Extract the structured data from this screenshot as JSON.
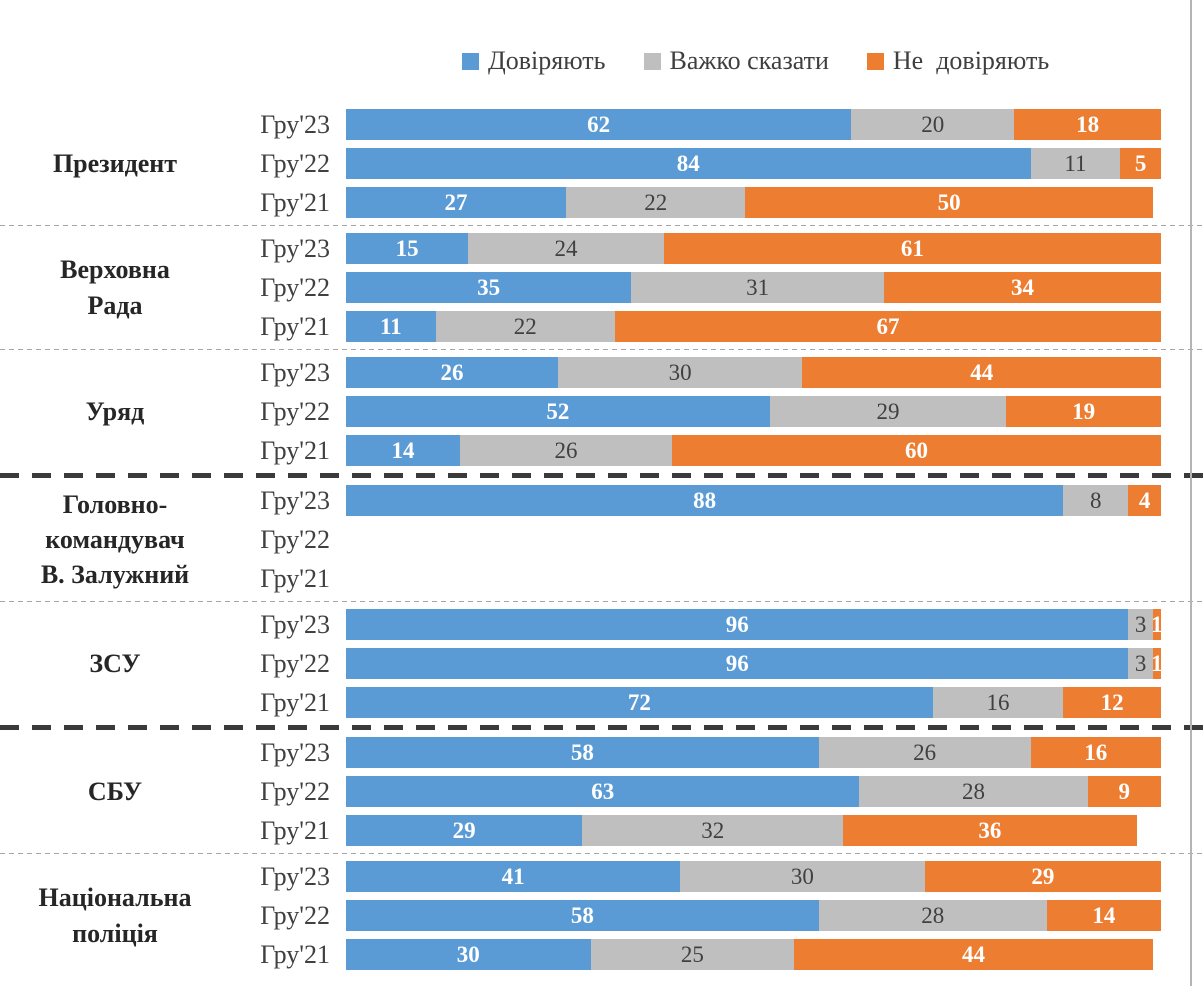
{
  "legend": {
    "items": [
      {
        "label": "Довіряють",
        "color": "#5B9BD5"
      },
      {
        "label": "Важко сказати",
        "color": "#BFBFBF"
      },
      {
        "label": "Не  довіряють",
        "color": "#ED7D31"
      }
    ]
  },
  "chart_data": {
    "type": "bar",
    "orientation": "horizontal",
    "stacked": true,
    "unit": "percent",
    "xlim": [
      0,
      100
    ],
    "series_names": [
      "Довіряють",
      "Важко сказати",
      "Не довіряють"
    ],
    "colors": [
      "#5B9BD5",
      "#BFBFBF",
      "#ED7D31"
    ],
    "value_label_colors": {
      "on_trust": "#FFFFFF",
      "on_hard_to_say": "#404040",
      "on_distrust": "#FFFFFF"
    },
    "groups": [
      {
        "label_lines": [
          "Президент"
        ],
        "separator_after": "thin",
        "rows": [
          {
            "year": "Гру'23",
            "values": [
              62,
              20,
              18
            ]
          },
          {
            "year": "Гру'22",
            "values": [
              84,
              11,
              5
            ]
          },
          {
            "year": "Гру'21",
            "values": [
              27,
              22,
              50
            ]
          }
        ]
      },
      {
        "label_lines": [
          "Верховна",
          "Рада"
        ],
        "separator_after": "thin",
        "rows": [
          {
            "year": "Гру'23",
            "values": [
              15,
              24,
              61
            ]
          },
          {
            "year": "Гру'22",
            "values": [
              35,
              31,
              34
            ]
          },
          {
            "year": "Гру'21",
            "values": [
              11,
              22,
              67
            ]
          }
        ]
      },
      {
        "label_lines": [
          "Уряд"
        ],
        "separator_after": "thick",
        "rows": [
          {
            "year": "Гру'23",
            "values": [
              26,
              30,
              44
            ]
          },
          {
            "year": "Гру'22",
            "values": [
              52,
              29,
              19
            ]
          },
          {
            "year": "Гру'21",
            "values": [
              14,
              26,
              60
            ]
          }
        ]
      },
      {
        "label_lines": [
          "Головно-",
          "командувач",
          "В. Залужний"
        ],
        "separator_after": "thin",
        "rows": [
          {
            "year": "Гру'23",
            "values": [
              88,
              8,
              4
            ]
          },
          {
            "year": "Гру'22",
            "values": null
          },
          {
            "year": "Гру'21",
            "values": null
          }
        ]
      },
      {
        "label_lines": [
          "ЗСУ"
        ],
        "separator_after": "thick",
        "rows": [
          {
            "year": "Гру'23",
            "values": [
              96,
              3,
              1
            ]
          },
          {
            "year": "Гру'22",
            "values": [
              96,
              3,
              1
            ]
          },
          {
            "year": "Гру'21",
            "values": [
              72,
              16,
              12
            ]
          }
        ]
      },
      {
        "label_lines": [
          "СБУ"
        ],
        "separator_after": "thin",
        "rows": [
          {
            "year": "Гру'23",
            "values": [
              58,
              26,
              16
            ]
          },
          {
            "year": "Гру'22",
            "values": [
              63,
              28,
              9
            ]
          },
          {
            "year": "Гру'21",
            "values": [
              29,
              32,
              36
            ]
          }
        ]
      },
      {
        "label_lines": [
          "Національна",
          "поліція"
        ],
        "separator_after": "none",
        "rows": [
          {
            "year": "Гру'23",
            "values": [
              41,
              30,
              29
            ]
          },
          {
            "year": "Гру'22",
            "values": [
              58,
              28,
              14
            ]
          },
          {
            "year": "Гру'21",
            "values": [
              30,
              25,
              44
            ]
          }
        ]
      }
    ]
  }
}
